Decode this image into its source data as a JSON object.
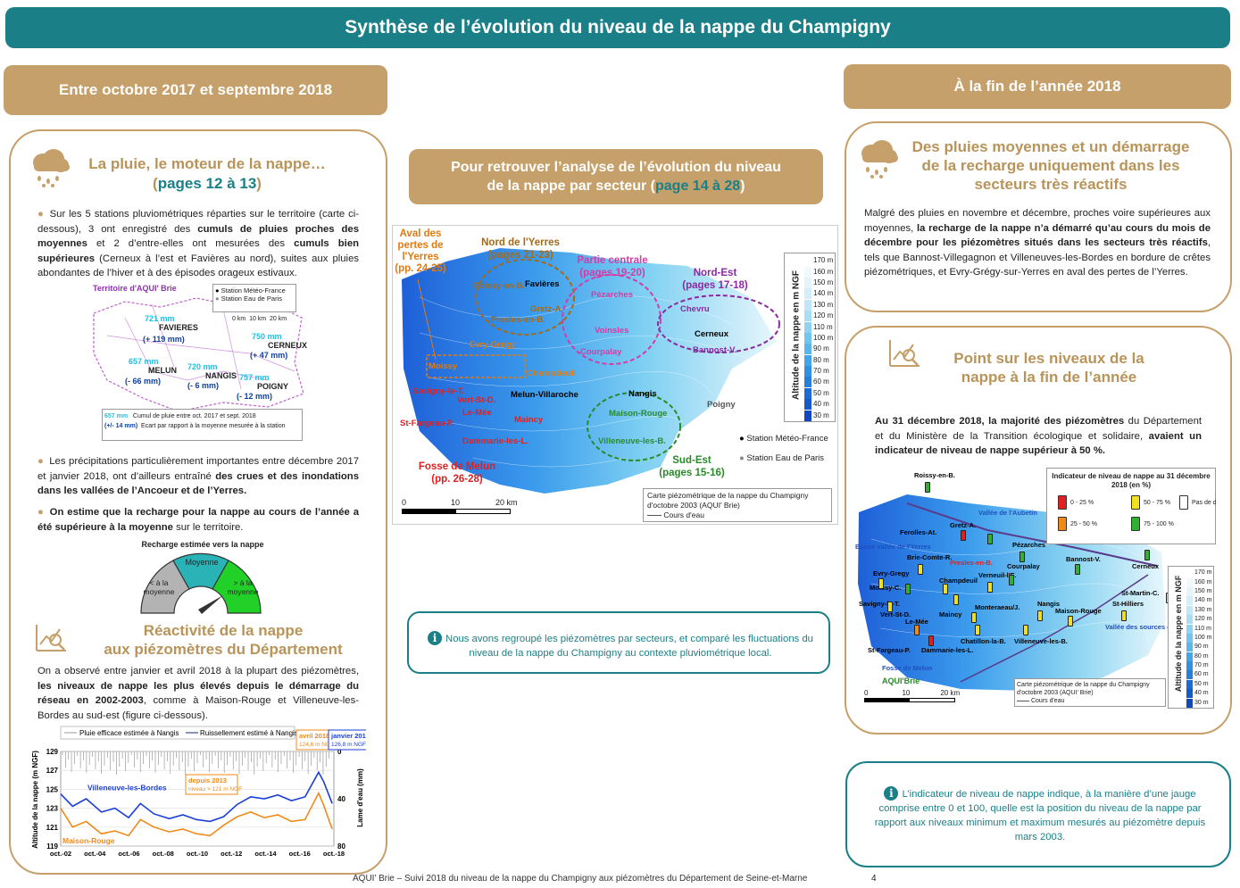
{
  "header": {
    "title": "Synthèse de l’évolution du niveau de la nappe du Champigny"
  },
  "left_banner": {
    "label": "Entre octobre 2017 et septembre 2018"
  },
  "right_banner": {
    "label": "À la fin de l’année 2018"
  },
  "pluie": {
    "title": "La pluie, le moteur de la nappe…",
    "pages_open": "(",
    "pages": "pages 12 à 13",
    "pages_close": ")",
    "p1_a": "Sur les 5 stations pluviométriques réparties sur le territoire (carte ci-dessous), 3 ont enregistré des ",
    "p1_b": "cumuls de pluies proches des moyennes",
    "p1_c": " et 2 d’entre-elles ont mesurées des ",
    "p1_d": "cumuls bien supérieures",
    "p1_e": " (Cerneux à l’est et Favières au nord), suites aux pluies abondantes de l’hiver et à des épisodes orageux estivaux.",
    "p2_a": "Les précipitations particulièrement importantes entre décembre 2017 et janvier 2018, ont d’ailleurs entraîné ",
    "p2_b": "des crues et des inondations dans les vallées de l’Ancoeur et de l’Yerres.",
    "p3_a": "On estime que la recharge pour la nappe au cours de l’année a été ",
    "p3_b": "supérieure à la moyenne",
    "p3_c": " sur le territoire."
  },
  "rain_map": {
    "title": "Territoire d'AQUI' Brie",
    "legend_meteo": "Station Météo-France",
    "legend_paris": "Station Eau de Paris",
    "scale": [
      "0 km",
      "10 km",
      "20 km"
    ],
    "stations": [
      {
        "name": "FAVIERES",
        "mm": "721 mm",
        "delta": "(+ 119 mm)"
      },
      {
        "name": "CERNEUX",
        "mm": "750 mm",
        "delta": "(+ 47 mm)"
      },
      {
        "name": "MELUN",
        "mm": "657 mm",
        "delta": "(- 66 mm)"
      },
      {
        "name": "NANGIS",
        "mm": "720 mm",
        "delta": "(- 6 mm)"
      },
      {
        "name": "POIGNY",
        "mm": "757 mm",
        "delta": "(- 12 mm)"
      }
    ],
    "legend_mm": "657 mm",
    "legend_mm_text": "Cumul de pluie entre oct. 2017 et sept. 2018",
    "legend_delta": "(+/- 14 mm)",
    "legend_delta_text": "Ecart par rapport à la moyenne mesurée à la station"
  },
  "gauge": {
    "title": "Recharge estimée vers la nappe",
    "low": "< à la moyenne",
    "mid": "Moyenne",
    "high": "> à la moyenne",
    "colors": {
      "low": "#b3b3b3",
      "mid": "#2ab3b7",
      "high": "#22d128"
    }
  },
  "reactivite": {
    "title_1": "Réactivité de la nappe",
    "title_2": "aux piézomètres du Département",
    "p_a": "On a observé entre janvier et avril 2018 à la plupart des piézomètres, ",
    "p_b": "les niveaux de nappe les plus élevés depuis le démarrage du réseau en 2002-2003",
    "p_c": ", comme à Maison-Rouge et Villeneuve-les-Bordes au sud-est (figure ci-dessous)."
  },
  "chart_data": {
    "type": "line",
    "legend": [
      "Pluie efficace estimée à Nangis",
      "Ruissellement estimé à Nangis"
    ],
    "ylabel": "Altitude de la nappe (m NGF)",
    "y2label": "Lame d'eau (mm)",
    "ylim": [
      119,
      129
    ],
    "y_ticks": [
      "129",
      "127",
      "125",
      "123",
      "121",
      "119"
    ],
    "y2_ticks": [
      "0",
      "40",
      "80"
    ],
    "x_ticks": [
      "oct.-02",
      "oct.-04",
      "oct.-06",
      "oct.-08",
      "oct.-10",
      "oct.-12",
      "oct.-14",
      "oct.-16",
      "oct.-18"
    ],
    "x": [
      2002.8,
      2003.5,
      2004.3,
      2005.2,
      2006.0,
      2006.8,
      2007.5,
      2008.3,
      2009.2,
      2010.0,
      2010.8,
      2011.6,
      2012.4,
      2013.2,
      2014.0,
      2014.8,
      2015.6,
      2016.4,
      2017.2,
      2018.0,
      2018.3,
      2018.8
    ],
    "series": [
      {
        "name": "Villeneuve-les-Bordes",
        "values": [
          124.5,
          123.2,
          124.0,
          122.6,
          123.0,
          122.0,
          123.5,
          122.4,
          121.9,
          122.3,
          121.8,
          121.6,
          122.1,
          123.4,
          124.2,
          124.0,
          124.4,
          123.8,
          124.2,
          126.8,
          125.8,
          123.5
        ]
      },
      {
        "name": "Maison-Rouge",
        "values": [
          123.0,
          121.0,
          121.6,
          120.3,
          120.6,
          120.1,
          121.8,
          121.0,
          120.5,
          120.8,
          120.3,
          120.1,
          121.2,
          122.1,
          122.6,
          122.0,
          122.3,
          121.6,
          121.8,
          124.6,
          123.3,
          120.8
        ]
      }
    ],
    "annotations": [
      {
        "label": "avril 2018",
        "value": "124,6 m NGF"
      },
      {
        "label": "janvier 2018",
        "value": "126,8 m NGF"
      },
      {
        "label": "depuis 2013",
        "value": "niveau > 121 m NGF"
      }
    ]
  },
  "secteur_box": {
    "line1": "Pour retrouver l’analyse de l’évolution du niveau",
    "line2": "de la nappe par secteur (",
    "pages": "page 14 à 28",
    "close": ")"
  },
  "main_map": {
    "sectors": [
      {
        "name": "Aval des pertes de l'Yerres",
        "pages": "(pp. 24-25)",
        "color": "#e07a10"
      },
      {
        "name": "Nord de l'Yerres",
        "pages": "(pages 21-23)",
        "color": "#a36a1a"
      },
      {
        "name": "Partie centrale",
        "pages": "(pages 19-20)",
        "color": "#d43ca5"
      },
      {
        "name": "Nord-Est",
        "pages": "(pages 17-18)",
        "color": "#8b2aa0"
      },
      {
        "name": "Sud-Est",
        "pages": "(pages 15-16)",
        "color": "#2a8a2a"
      },
      {
        "name": "Fosse de Melun",
        "pages": "(pp. 26-28)",
        "color": "#e02020"
      }
    ],
    "places": [
      "Roissy-en-B.",
      "Favières",
      "Gretz-A.",
      "Presles-en-B.",
      "Evry-Grégy",
      "Moissy",
      "Champdeuil",
      "Melun-Villaroche",
      "Savigny-le-T.",
      "Vert-St-D.",
      "St-Fargeau-P.",
      "Le-Mée",
      "Dammarie-les-L.",
      "Maincy",
      "Pézarches",
      "Voinsles",
      "Courpalay",
      "Chevru",
      "Cerneux",
      "Bannost-V.",
      "Nangis",
      "Maison-Rouge",
      "Villeneuve-les-B.",
      "Poigny"
    ],
    "scale_label": "Altitude de la nappe en m NGF",
    "scale_values": [
      "170 m",
      "160 m",
      "150 m",
      "140 m",
      "130 m",
      "120 m",
      "110 m",
      "100 m",
      "90 m",
      "80 m",
      "70 m",
      "60 m",
      "50 m",
      "40 m",
      "30 m"
    ],
    "legend_meteo": "Station Météo-France",
    "legend_paris": "Station Eau de Paris",
    "caption": "Carte piézométrique de la nappe du Champigny d'octobre 2003 (AQUI' Brie)",
    "rivers": "Cours d'eau",
    "km": [
      "0",
      "10",
      "20 km"
    ]
  },
  "info_left": {
    "text": "Nous avons regroupé les piézomètres par secteurs, et comparé les fluctuations du niveau de la nappe du Champigny au contexte pluviométrique local."
  },
  "pluies_moy": {
    "title_1": "Des pluies moyennes et un démarrage",
    "title_2": "de la recharge uniquement dans les",
    "title_3": "secteurs très réactifs",
    "p_a": "Malgré des pluies en novembre et décembre, proches voire supérieures aux moyennes, ",
    "p_b": "la recharge de la nappe n’a démarré qu’au cours du mois de décembre pour les piézomètres situés dans les secteurs très réactifs",
    "p_c": ", tels que Bannost-Villegagnon et Villeneuves-les-Bordes en bordure de crêtes piézométriques, et Evry-Grégy-sur-Yerres en aval des pertes de l’Yerres."
  },
  "point": {
    "title_1": "Point sur les niveaux de la",
    "title_2": "nappe à la fin de l’année",
    "p_a": "Au 31 décembre 2018, ",
    "p_b": "la majorité des piézomètres",
    "p_c": " du Département et du Ministère de la Transition écologique et solidaire, ",
    "p_d": "avaient un indicateur de niveau de nappe supérieur à 50 %."
  },
  "right_map": {
    "legend_title": "Indicateur de niveau de nappe au 31 décembre 2018 (en %)",
    "legend_items": [
      "0 - 25 %",
      "25 - 50 %",
      "50 - 75 %",
      "75 - 100 %",
      "Pas de donnée"
    ],
    "legend_colors": [
      "#e02020",
      "#f08a1a",
      "#f0e020",
      "#30b030",
      "#ffffff"
    ],
    "places": [
      "Roissy-en-B.",
      "Vallée de l'Aubetin",
      "Gretz-A.",
      "Ferolles-At.",
      "Basse vallée de l'Yerres",
      "Brie-Comte-R.",
      "Presles-en-B.",
      "Pézarches",
      "Bannost-V.",
      "Cerneux",
      "Evry-Gregy",
      "Verneuil-l'E.",
      "Courpalay",
      "Moissy-C.",
      "Champdeuil",
      "St-Martin-C.",
      "Savigny-le-T.",
      "Monteraeau/J.",
      "Nangis",
      "Maison-Rouge",
      "St-Hilliers",
      "Vert-St-D.",
      "Maincy",
      "Le-Mée",
      "Vallée des sources du Provinois",
      "St-Fargeau-P.",
      "Dammarie-les-L.",
      "Chatillon-la-B.",
      "Villeneuve-les-B.",
      "Fosse de Melun"
    ],
    "scale_label": "Altitude de la nappe en m NGF",
    "scale_values": [
      "170 m",
      "160 m",
      "150 m",
      "140 m",
      "130 m",
      "120 m",
      "110 m",
      "100 m",
      "90 m",
      "80 m",
      "70 m",
      "60 m",
      "50 m",
      "40 m",
      "30 m"
    ],
    "caption": "Carte piézométrique de la nappe du Champigny d'octobre 2003 (AQUI' Brie)",
    "rivers": "Cours d'eau",
    "logo": "AQUI'Brie",
    "km": [
      "0",
      "10",
      "20 km"
    ]
  },
  "info_right": {
    "text": "L’indicateur de niveau de nappe indique, à la manière d’une jauge comprise entre 0 et 100, quelle est la position du niveau de la nappe par rapport aux niveaux minimum et maximum mesurés au piézomètre depuis mars 2003."
  },
  "footer": {
    "text": "AQUI’ Brie – Suivi 2018 du niveau de la nappe du Champigny aux piézomètres du Département de Seine-et-Marne",
    "page": "4"
  }
}
